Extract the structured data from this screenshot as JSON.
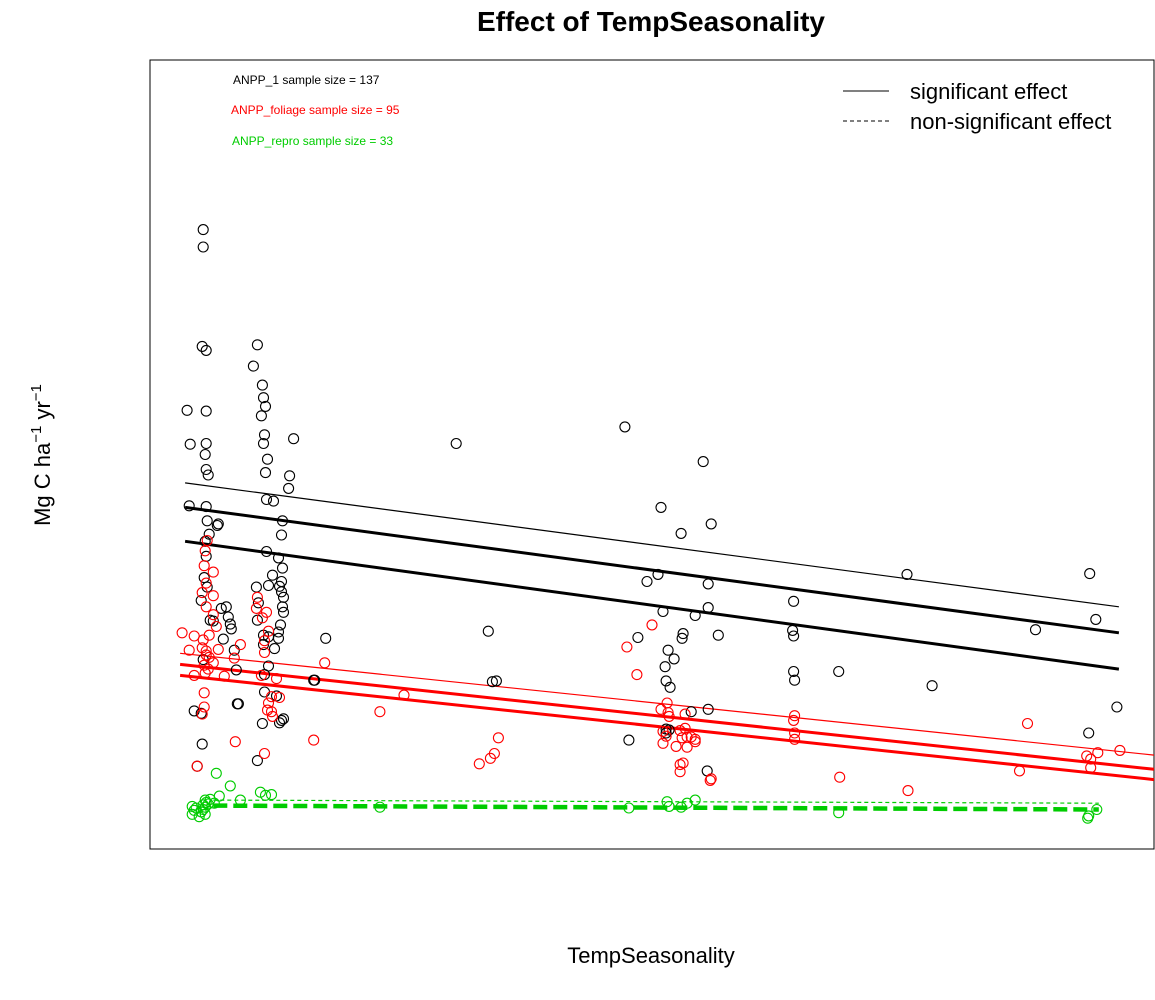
{
  "chart_data": {
    "type": "scatter",
    "title": "Effect of TempSeasonality",
    "xlabel": "TempSeasonality",
    "ylabel": {
      "base": "Mg C ha",
      "exp1": "−1",
      "mid": " yr",
      "exp2": "−1"
    },
    "annotations": [
      {
        "text": "ANPP_1 sample size = 137",
        "color": "#000000"
      },
      {
        "text": "ANPP_foliage sample size = 95",
        "color": "#ff0000"
      },
      {
        "text": "ANPP_repro sample size = 33",
        "color": "#00cc00"
      }
    ],
    "legend": {
      "position": "top-right",
      "entries": [
        {
          "label": "significant effect",
          "linestyle": "solid"
        },
        {
          "label": "non-significant effect",
          "linestyle": "dashed"
        }
      ]
    },
    "xlim": [
      0,
      100
    ],
    "ylim": [
      0,
      100
    ],
    "series": [
      {
        "name": "ANPP_1",
        "color": "#000000",
        "points": [
          [
            5.3,
            78.5
          ],
          [
            5.3,
            76.3
          ],
          [
            5.2,
            63.7
          ],
          [
            5.6,
            63.2
          ],
          [
            3.7,
            55.6
          ],
          [
            5.6,
            55.5
          ],
          [
            4.0,
            51.3
          ],
          [
            5.6,
            51.4
          ],
          [
            5.5,
            50.0
          ],
          [
            5.6,
            48.1
          ],
          [
            5.8,
            47.4
          ],
          [
            3.9,
            43.5
          ],
          [
            5.6,
            43.4
          ],
          [
            5.7,
            41.6
          ],
          [
            5.9,
            39.9
          ],
          [
            6.7,
            41.0
          ],
          [
            6.8,
            41.2
          ],
          [
            5.5,
            39.0
          ],
          [
            5.6,
            37.1
          ],
          [
            5.4,
            34.4
          ],
          [
            5.7,
            33.2
          ],
          [
            5.1,
            31.5
          ],
          [
            6.0,
            29.0
          ],
          [
            7.1,
            30.5
          ],
          [
            7.6,
            30.7
          ],
          [
            7.8,
            29.4
          ],
          [
            8.0,
            28.5
          ],
          [
            8.1,
            27.9
          ],
          [
            7.3,
            26.6
          ],
          [
            8.4,
            25.2
          ],
          [
            5.3,
            24.0
          ],
          [
            8.6,
            22.7
          ],
          [
            8.8,
            18.4
          ],
          [
            4.4,
            17.5
          ],
          [
            5.1,
            17.2
          ],
          [
            5.2,
            13.3
          ],
          [
            4.7,
            10.5
          ],
          [
            10.7,
            63.9
          ],
          [
            10.3,
            61.2
          ],
          [
            11.2,
            58.8
          ],
          [
            11.3,
            57.2
          ],
          [
            11.5,
            56.1
          ],
          [
            11.1,
            54.9
          ],
          [
            11.4,
            52.5
          ],
          [
            14.3,
            52.0
          ],
          [
            11.3,
            51.4
          ],
          [
            11.7,
            49.4
          ],
          [
            11.5,
            47.7
          ],
          [
            13.9,
            47.3
          ],
          [
            11.6,
            44.3
          ],
          [
            13.8,
            45.7
          ],
          [
            12.3,
            44.1
          ],
          [
            13.2,
            41.6
          ],
          [
            13.1,
            39.8
          ],
          [
            11.6,
            37.7
          ],
          [
            12.8,
            36.9
          ],
          [
            13.2,
            35.6
          ],
          [
            12.2,
            34.7
          ],
          [
            13.1,
            33.9
          ],
          [
            10.6,
            33.2
          ],
          [
            11.8,
            33.4
          ],
          [
            12.9,
            33.3
          ],
          [
            13.1,
            32.6
          ],
          [
            13.3,
            31.9
          ],
          [
            10.8,
            31.2
          ],
          [
            13.2,
            30.7
          ],
          [
            13.3,
            30.0
          ],
          [
            10.7,
            29.0
          ],
          [
            13.0,
            28.4
          ],
          [
            12.8,
            27.5
          ],
          [
            11.3,
            27.1
          ],
          [
            11.8,
            26.9
          ],
          [
            12.8,
            26.7
          ],
          [
            11.3,
            25.9
          ],
          [
            12.4,
            25.4
          ],
          [
            11.8,
            23.2
          ],
          [
            11.4,
            22.1
          ],
          [
            11.4,
            19.9
          ],
          [
            12.6,
            19.4
          ],
          [
            13.3,
            16.5
          ],
          [
            13.1,
            16.3
          ],
          [
            11.2,
            15.9
          ],
          [
            12.9,
            16.0
          ],
          [
            17.5,
            26.7
          ],
          [
            16.3,
            21.4
          ],
          [
            8.7,
            18.4
          ],
          [
            10.7,
            11.2
          ],
          [
            30.5,
            51.4
          ],
          [
            47.3,
            53.5
          ],
          [
            55.1,
            49.1
          ],
          [
            50.9,
            43.3
          ],
          [
            52.9,
            40.0
          ],
          [
            55.9,
            41.2
          ],
          [
            50.6,
            34.8
          ],
          [
            55.6,
            33.6
          ],
          [
            49.5,
            33.9
          ],
          [
            48.6,
            26.8
          ],
          [
            53.0,
            26.7
          ],
          [
            54.3,
            29.6
          ],
          [
            55.6,
            30.6
          ],
          [
            51.1,
            30.1
          ],
          [
            51.3,
            23.1
          ],
          [
            51.6,
            25.2
          ],
          [
            52.2,
            24.1
          ],
          [
            53.1,
            27.3
          ],
          [
            56.6,
            27.1
          ],
          [
            51.4,
            21.3
          ],
          [
            51.8,
            20.5
          ],
          [
            51.7,
            15.1
          ],
          [
            51.4,
            15.2
          ],
          [
            51.4,
            14.7
          ],
          [
            53.9,
            17.4
          ],
          [
            55.6,
            17.7
          ],
          [
            47.7,
            13.8
          ],
          [
            55.5,
            9.9
          ],
          [
            64.1,
            31.4
          ],
          [
            64.0,
            27.7
          ],
          [
            64.1,
            27.0
          ],
          [
            64.1,
            22.5
          ],
          [
            64.2,
            21.4
          ],
          [
            68.6,
            22.5
          ],
          [
            75.4,
            34.8
          ],
          [
            77.9,
            20.7
          ],
          [
            88.2,
            27.8
          ],
          [
            93.6,
            34.9
          ],
          [
            94.2,
            29.1
          ],
          [
            93.5,
            14.7
          ],
          [
            96.3,
            18.0
          ],
          [
            33.7,
            27.6
          ],
          [
            34.1,
            21.2
          ],
          [
            34.5,
            21.3
          ],
          [
            16.4,
            21.4
          ],
          [
            6.3,
            28.9
          ]
        ],
        "fits": [
          {
            "x": [
              3.5,
              96.5
            ],
            "y": [
              46.4,
              30.7
            ],
            "width": 1.2,
            "dashed": false
          },
          {
            "x": [
              3.5,
              96.5
            ],
            "y": [
              43.3,
              27.4
            ],
            "width": 3,
            "dashed": false
          },
          {
            "x": [
              3.5,
              96.5
            ],
            "y": [
              39.0,
              22.8
            ],
            "width": 3,
            "dashed": false
          }
        ]
      },
      {
        "name": "ANPP_foliage",
        "color": "#ff0000",
        "points": [
          [
            3.2,
            27.4
          ],
          [
            4.4,
            27.0
          ],
          [
            3.9,
            25.2
          ],
          [
            5.7,
            39.1
          ],
          [
            5.5,
            37.8
          ],
          [
            5.4,
            35.9
          ],
          [
            6.3,
            35.1
          ],
          [
            5.6,
            33.7
          ],
          [
            5.2,
            32.5
          ],
          [
            6.3,
            32.1
          ],
          [
            5.6,
            30.7
          ],
          [
            6.3,
            29.7
          ],
          [
            6.6,
            28.2
          ],
          [
            5.9,
            27.1
          ],
          [
            5.3,
            26.5
          ],
          [
            5.2,
            25.5
          ],
          [
            5.6,
            25.1
          ],
          [
            5.6,
            24.6
          ],
          [
            5.9,
            24.3
          ],
          [
            6.3,
            23.6
          ],
          [
            5.4,
            23.3
          ],
          [
            5.8,
            22.8
          ],
          [
            5.5,
            22.3
          ],
          [
            4.4,
            22.0
          ],
          [
            7.4,
            21.9
          ],
          [
            8.4,
            24.2
          ],
          [
            9.0,
            25.9
          ],
          [
            6.8,
            25.3
          ],
          [
            5.4,
            19.8
          ],
          [
            5.4,
            18.0
          ],
          [
            5.2,
            17.1
          ],
          [
            4.7,
            10.5
          ],
          [
            8.5,
            13.6
          ],
          [
            10.7,
            31.9
          ],
          [
            10.6,
            30.5
          ],
          [
            11.6,
            30.0
          ],
          [
            11.2,
            29.3
          ],
          [
            11.8,
            27.6
          ],
          [
            11.4,
            26.4
          ],
          [
            11.4,
            24.9
          ],
          [
            11.1,
            22.0
          ],
          [
            12.6,
            21.6
          ],
          [
            12.1,
            19.3
          ],
          [
            12.9,
            19.2
          ],
          [
            11.8,
            18.5
          ],
          [
            11.7,
            17.6
          ],
          [
            12.1,
            17.4
          ],
          [
            12.2,
            16.8
          ],
          [
            11.4,
            12.1
          ],
          [
            16.3,
            13.8
          ],
          [
            17.4,
            23.6
          ],
          [
            22.9,
            17.4
          ],
          [
            25.3,
            19.5
          ],
          [
            32.8,
            10.8
          ],
          [
            33.9,
            11.5
          ],
          [
            34.3,
            12.1
          ],
          [
            34.7,
            14.1
          ],
          [
            47.5,
            25.6
          ],
          [
            48.5,
            22.1
          ],
          [
            50.0,
            28.4
          ],
          [
            50.9,
            17.7
          ],
          [
            51.5,
            18.5
          ],
          [
            53.3,
            17.1
          ],
          [
            54.3,
            13.9
          ],
          [
            53.3,
            15.3
          ],
          [
            51.1,
            14.9
          ],
          [
            51.4,
            14.3
          ],
          [
            53.9,
            14.2
          ],
          [
            53.5,
            12.9
          ],
          [
            52.8,
            10.7
          ],
          [
            52.8,
            9.8
          ],
          [
            55.9,
            8.9
          ],
          [
            55.8,
            8.7
          ],
          [
            64.2,
            16.9
          ],
          [
            64.1,
            16.3
          ],
          [
            64.2,
            14.7
          ],
          [
            64.2,
            13.9
          ],
          [
            68.7,
            9.1
          ],
          [
            75.5,
            7.4
          ],
          [
            86.6,
            9.9
          ],
          [
            87.4,
            15.9
          ],
          [
            93.7,
            11.4
          ],
          [
            94.4,
            12.2
          ],
          [
            96.6,
            12.5
          ],
          [
            53.0,
            14.1
          ],
          [
            51.6,
            17.3
          ],
          [
            52.8,
            15.0
          ],
          [
            53.1,
            10.9
          ],
          [
            53.5,
            14.2
          ],
          [
            51.1,
            13.4
          ],
          [
            52.4,
            13.0
          ],
          [
            54.3,
            13.6
          ],
          [
            51.7,
            16.8
          ],
          [
            93.3,
            11.8
          ],
          [
            93.7,
            10.3
          ]
        ],
        "fits": [
          {
            "x": [
              3.0,
              100.0
            ],
            "y": [
              24.8,
              11.9
            ],
            "width": 1.2,
            "dashed": false
          },
          {
            "x": [
              3.0,
              100.0
            ],
            "y": [
              23.4,
              10.1
            ],
            "width": 3,
            "dashed": false
          },
          {
            "x": [
              3.0,
              100.0
            ],
            "y": [
              22.0,
              8.8
            ],
            "width": 3,
            "dashed": false
          }
        ]
      },
      {
        "name": "ANPP_repro",
        "color": "#00cc00",
        "points": [
          [
            4.2,
            5.4
          ],
          [
            4.6,
            5.2
          ],
          [
            4.4,
            4.9
          ],
          [
            4.2,
            4.4
          ],
          [
            4.9,
            4.1
          ],
          [
            5.1,
            4.7
          ],
          [
            5.3,
            5.0
          ],
          [
            5.5,
            5.3
          ],
          [
            5.3,
            5.6
          ],
          [
            5.6,
            5.9
          ],
          [
            5.5,
            4.4
          ],
          [
            5.8,
            5.7
          ],
          [
            5.5,
            6.2
          ],
          [
            6.0,
            6.3
          ],
          [
            6.4,
            5.8
          ],
          [
            6.9,
            6.7
          ],
          [
            6.6,
            9.6
          ],
          [
            8.0,
            8.0
          ],
          [
            9.0,
            6.2
          ],
          [
            11.0,
            7.2
          ],
          [
            11.5,
            6.8
          ],
          [
            12.1,
            6.9
          ],
          [
            22.9,
            5.3
          ],
          [
            47.7,
            5.2
          ],
          [
            51.5,
            6.0
          ],
          [
            51.7,
            5.4
          ],
          [
            52.9,
            5.3
          ],
          [
            53.5,
            5.8
          ],
          [
            54.3,
            6.2
          ],
          [
            68.6,
            4.6
          ],
          [
            93.5,
            4.2
          ],
          [
            94.3,
            5.0
          ],
          [
            93.4,
            3.9
          ]
        ],
        "fits": [
          {
            "x": [
              6.3,
              94.5
            ],
            "y": [
              6.2,
              5.8
            ],
            "width": 1.2,
            "dashed": true
          },
          {
            "x": [
              6.3,
              94.5
            ],
            "y": [
              5.5,
              5.0
            ],
            "width": 4.5,
            "dashed": true
          }
        ]
      }
    ]
  }
}
